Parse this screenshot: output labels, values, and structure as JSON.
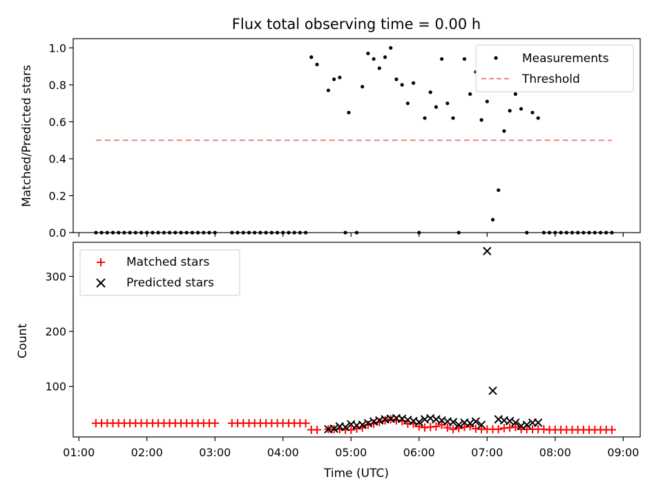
{
  "chart_data": [
    {
      "type": "scatter",
      "title": "Flux total observing time = 0.00 h",
      "xlabel": "",
      "ylabel": "Matched/Predicted stars",
      "ylim": [
        0.0,
        1.05
      ],
      "yticks": [
        "0.0",
        "0.2",
        "0.4",
        "0.6",
        "0.8",
        "1.0"
      ],
      "grid": false,
      "legend": "top-right",
      "series": [
        {
          "name": "Measurements",
          "kind": "scatter",
          "marker": "dot",
          "color": "#000000",
          "x": [
            "01:15",
            "01:20",
            "01:25",
            "01:30",
            "01:35",
            "01:40",
            "01:45",
            "01:50",
            "01:55",
            "02:00",
            "02:05",
            "02:10",
            "02:15",
            "02:20",
            "02:25",
            "02:30",
            "02:35",
            "02:40",
            "02:45",
            "02:50",
            "02:55",
            "03:00",
            "03:15",
            "03:20",
            "03:25",
            "03:30",
            "03:35",
            "03:40",
            "03:45",
            "03:50",
            "03:55",
            "04:00",
            "04:05",
            "04:10",
            "04:15",
            "04:20",
            "04:25",
            "04:30",
            "04:40",
            "04:45",
            "04:50",
            "04:55",
            "04:58",
            "05:05",
            "05:10",
            "05:15",
            "05:20",
            "05:25",
            "05:30",
            "05:35",
            "05:40",
            "05:45",
            "05:50",
            "05:55",
            "06:00",
            "06:05",
            "06:10",
            "06:15",
            "06:20",
            "06:25",
            "06:30",
            "06:35",
            "06:40",
            "06:45",
            "06:50",
            "06:55",
            "07:00",
            "07:05",
            "07:10",
            "07:15",
            "07:20",
            "07:25",
            "07:30",
            "07:35",
            "07:40",
            "07:45",
            "07:50",
            "07:55",
            "08:00",
            "08:05",
            "08:10",
            "08:15",
            "08:20",
            "08:25",
            "08:30",
            "08:35",
            "08:40",
            "08:45",
            "08:50"
          ],
          "y": [
            0,
            0,
            0,
            0,
            0,
            0,
            0,
            0,
            0,
            0,
            0,
            0,
            0,
            0,
            0,
            0,
            0,
            0,
            0,
            0,
            0,
            0,
            0,
            0,
            0,
            0,
            0,
            0,
            0,
            0,
            0,
            0,
            0,
            0,
            0,
            0,
            0.95,
            0.91,
            0.77,
            0.83,
            0.84,
            0,
            0.65,
            0,
            0.79,
            0.97,
            0.94,
            0.89,
            0.95,
            1.0,
            0.83,
            0.8,
            0.7,
            0.81,
            0,
            0.62,
            0.76,
            0.68,
            0.94,
            0.7,
            0.62,
            0,
            0.94,
            0.75,
            0.87,
            0.61,
            0.71,
            0.07,
            0.23,
            0.55,
            0.66,
            0.75,
            0.67,
            0,
            0.65,
            0.62,
            0,
            0,
            0,
            0,
            0,
            0,
            0,
            0,
            0,
            0,
            0,
            0,
            0
          ]
        },
        {
          "name": "Threshold",
          "kind": "line",
          "style": "dashed",
          "color": "#f08080",
          "x": [
            "01:15",
            "08:50"
          ],
          "y": [
            0.5,
            0.5
          ]
        }
      ]
    },
    {
      "type": "scatter",
      "title": "",
      "xlabel": "Time (UTC)",
      "ylabel": "Count",
      "ylim": [
        8,
        362
      ],
      "yticks": [
        "100",
        "200",
        "300"
      ],
      "xlim": [
        "00:55",
        "09:15"
      ],
      "xticks": [
        "01:00",
        "02:00",
        "03:00",
        "04:00",
        "05:00",
        "06:00",
        "07:00",
        "08:00",
        "09:00"
      ],
      "grid": false,
      "legend": "top-left",
      "series": [
        {
          "name": "Matched stars",
          "marker": "plus",
          "color": "#ff0000",
          "x": [
            "01:15",
            "01:20",
            "01:25",
            "01:30",
            "01:35",
            "01:40",
            "01:45",
            "01:50",
            "01:55",
            "02:00",
            "02:05",
            "02:10",
            "02:15",
            "02:20",
            "02:25",
            "02:30",
            "02:35",
            "02:40",
            "02:45",
            "02:50",
            "02:55",
            "03:00",
            "03:15",
            "03:20",
            "03:25",
            "03:30",
            "03:35",
            "03:40",
            "03:45",
            "03:50",
            "03:55",
            "04:00",
            "04:05",
            "04:10",
            "04:15",
            "04:20",
            "04:25",
            "04:30",
            "04:40",
            "04:45",
            "04:50",
            "04:55",
            "05:00",
            "05:05",
            "05:10",
            "05:15",
            "05:20",
            "05:25",
            "05:30",
            "05:35",
            "05:40",
            "05:45",
            "05:50",
            "05:55",
            "06:00",
            "06:05",
            "06:10",
            "06:15",
            "06:20",
            "06:25",
            "06:30",
            "06:35",
            "06:40",
            "06:45",
            "06:50",
            "06:55",
            "07:00",
            "07:05",
            "07:10",
            "07:15",
            "07:20",
            "07:25",
            "07:30",
            "07:35",
            "07:40",
            "07:45",
            "07:50",
            "07:55",
            "08:00",
            "08:05",
            "08:10",
            "08:15",
            "08:20",
            "08:25",
            "08:30",
            "08:35",
            "08:40",
            "08:45",
            "08:50"
          ],
          "y": [
            33,
            33,
            33,
            33,
            33,
            33,
            33,
            33,
            33,
            33,
            33,
            33,
            33,
            33,
            33,
            33,
            33,
            33,
            33,
            33,
            33,
            33,
            33,
            33,
            33,
            33,
            33,
            33,
            33,
            33,
            33,
            33,
            33,
            33,
            33,
            33,
            21,
            21,
            22,
            22,
            22,
            21,
            21,
            23,
            25,
            30,
            32,
            35,
            38,
            40,
            38,
            37,
            32,
            32,
            27,
            25,
            26,
            27,
            30,
            25,
            22,
            24,
            26,
            27,
            23,
            22,
            22,
            22,
            22,
            24,
            25,
            26,
            22,
            22,
            22,
            22,
            22,
            21,
            21,
            21,
            21,
            21,
            21,
            21,
            21,
            21,
            21,
            21,
            21
          ]
        },
        {
          "name": "Predicted stars",
          "marker": "x",
          "color": "#000000",
          "x": [
            "04:40",
            "04:45",
            "04:50",
            "04:55",
            "05:00",
            "05:05",
            "05:10",
            "05:15",
            "05:20",
            "05:25",
            "05:30",
            "05:35",
            "05:40",
            "05:45",
            "05:50",
            "05:55",
            "06:00",
            "06:05",
            "06:10",
            "06:15",
            "06:20",
            "06:25",
            "06:30",
            "06:35",
            "06:40",
            "06:45",
            "06:50",
            "06:55",
            "07:00",
            "07:05",
            "07:10",
            "07:15",
            "07:20",
            "07:25",
            "07:30",
            "07:35",
            "07:40",
            "07:45"
          ],
          "y": [
            22,
            23,
            27,
            26,
            31,
            29,
            30,
            33,
            36,
            38,
            40,
            41,
            42,
            41,
            39,
            37,
            35,
            40,
            42,
            40,
            38,
            36,
            35,
            30,
            34,
            33,
            36,
            30,
            346,
            92,
            40,
            38,
            37,
            34,
            28,
            30,
            34,
            34
          ]
        }
      ]
    }
  ]
}
